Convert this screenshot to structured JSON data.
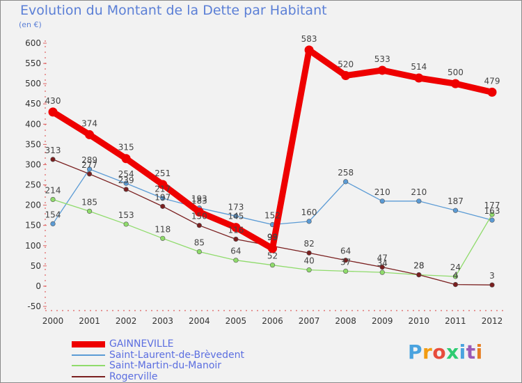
{
  "title": "Evolution du Montant de la Dette par Habitant",
  "subtitle": "(en €)",
  "logo": {
    "text": "Proxiti",
    "colors": [
      "#4aa3df",
      "#f39c12",
      "#e74c3c",
      "#2ecc71",
      "#4aa3df",
      "#9b59b6",
      "#e67e22"
    ]
  },
  "chart_data": {
    "type": "line",
    "x": [
      "2000",
      "2001",
      "2002",
      "2003",
      "2004",
      "2005",
      "2006",
      "2007",
      "2008",
      "2009",
      "2010",
      "2011",
      "2012"
    ],
    "ylim": [
      -50,
      600
    ],
    "yticks": [
      "-50",
      "0",
      "50",
      "100",
      "150",
      "200",
      "250",
      "300",
      "350",
      "400",
      "450",
      "500",
      "550",
      "600"
    ],
    "grid": false,
    "legend_position": "bottom-left",
    "series": [
      {
        "name": "GAINNEVILLE",
        "color": "#ee0000",
        "values": [
          430,
          374,
          315,
          251,
          183,
          145,
          93,
          583,
          520,
          533,
          514,
          500,
          479
        ]
      },
      {
        "name": "Saint-Laurent-de-Brèvedent",
        "color": "#5b9bd5",
        "values": [
          154,
          289,
          254,
          217,
          193,
          173,
          152,
          160,
          258,
          210,
          210,
          187,
          163
        ]
      },
      {
        "name": "Saint-Martin-du-Manoir",
        "color": "#8fdb6b",
        "values": [
          214,
          185,
          153,
          118,
          85,
          64,
          52,
          40,
          37,
          34,
          28,
          24,
          177
        ]
      },
      {
        "name": "Rogerville",
        "color": "#7a1f1f",
        "values": [
          313,
          277,
          239,
          197,
          150,
          116,
          99,
          82,
          64,
          47,
          28,
          4,
          3
        ]
      }
    ]
  }
}
